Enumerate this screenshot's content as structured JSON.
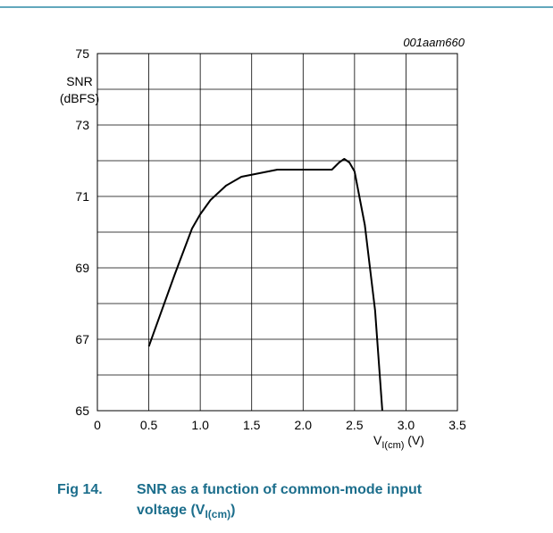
{
  "chart_data": {
    "type": "line",
    "figure_id": "001aam660",
    "ylabel_line1": "SNR",
    "ylabel_line2": "(dBFS)",
    "xlabel": {
      "main": "V",
      "sub": "I(cm)",
      "unit": " (V)"
    },
    "caption": {
      "number": "Fig 14.",
      "line1": "SNR as a function of common-mode input",
      "line2": "voltage (V",
      "sub": "I(cm)",
      "end": ")"
    },
    "x": [
      0.5,
      0.75,
      0.92,
      1.0,
      1.1,
      1.25,
      1.4,
      1.75,
      2.0,
      2.28,
      2.35,
      2.4,
      2.45,
      2.5,
      2.6,
      2.7,
      2.77
    ],
    "series": [
      {
        "color": "#000000",
        "values": [
          66.8,
          68.8,
          70.1,
          70.5,
          70.9,
          71.3,
          71.55,
          71.75,
          71.75,
          71.75,
          71.95,
          72.05,
          71.95,
          71.7,
          70.2,
          67.8,
          65
        ]
      }
    ],
    "xlim": [
      0,
      3.5
    ],
    "ylim": [
      65,
      75
    ],
    "xticks": [
      0,
      0.5,
      {
        "value": 1,
        "label": "1.0"
      },
      1.5,
      {
        "value": 2,
        "label": "2.0"
      },
      2.5,
      {
        "value": 3,
        "label": "3.0"
      },
      3.5
    ],
    "yticks": [
      65,
      67,
      69,
      71,
      73,
      75
    ],
    "ygrid": [
      65,
      66,
      67,
      68,
      69,
      70,
      71,
      72,
      73,
      74,
      75
    ],
    "grid": true
  }
}
